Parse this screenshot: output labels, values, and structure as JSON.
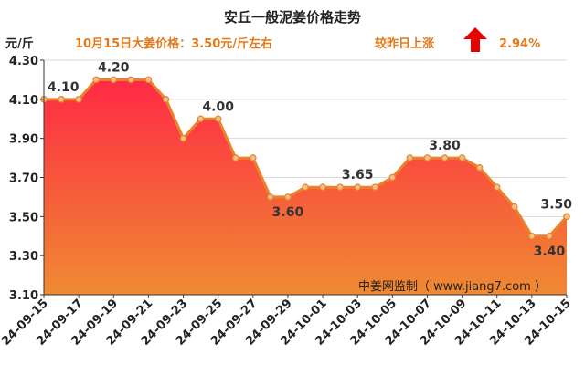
{
  "chart_data": {
    "type": "area",
    "title": "安丘一般泥姜价格走势",
    "ylabel": "元/斤",
    "xlabel": "",
    "ylim": [
      3.1,
      4.3
    ],
    "yticks": [
      "4.30",
      "4.10",
      "3.90",
      "3.70",
      "3.50",
      "3.30",
      "3.10"
    ],
    "x": [
      "24-09-15",
      "24-09-16",
      "24-09-17",
      "24-09-18",
      "24-09-19",
      "24-09-20",
      "24-09-21",
      "24-09-22",
      "24-09-23",
      "24-09-24",
      "24-09-25",
      "24-09-26",
      "24-09-27",
      "24-09-28",
      "24-09-29",
      "24-09-30",
      "24-10-01",
      "24-10-02",
      "24-10-03",
      "24-10-04",
      "24-10-05",
      "24-10-06",
      "24-10-07",
      "24-10-08",
      "24-10-09",
      "24-10-10",
      "24-10-11",
      "24-10-12",
      "24-10-13",
      "24-10-14",
      "24-10-15"
    ],
    "xtick_labels": [
      "24-09-15",
      "24-09-17",
      "24-09-19",
      "24-09-21",
      "24-09-23",
      "24-09-25",
      "24-09-27",
      "24-09-29",
      "24-10-01",
      "24-10-03",
      "24-10-05",
      "24-10-07",
      "24-10-09",
      "24-10-11",
      "24-10-13",
      "24-10-15"
    ],
    "values": [
      4.1,
      4.1,
      4.1,
      4.2,
      4.2,
      4.2,
      4.2,
      4.1,
      3.9,
      4.0,
      4.0,
      3.8,
      3.8,
      3.6,
      3.6,
      3.65,
      3.65,
      3.65,
      3.65,
      3.65,
      3.7,
      3.8,
      3.8,
      3.8,
      3.8,
      3.75,
      3.65,
      3.55,
      3.4,
      3.4,
      3.5
    ],
    "data_labels": [
      {
        "index": 0,
        "text": "4.10",
        "pos": "above"
      },
      {
        "index": 4,
        "text": "4.20",
        "pos": "above"
      },
      {
        "index": 10,
        "text": "4.00",
        "pos": "above"
      },
      {
        "index": 14,
        "text": "3.60",
        "pos": "below"
      },
      {
        "index": 18,
        "text": "3.65",
        "pos": "above"
      },
      {
        "index": 23,
        "text": "3.80",
        "pos": "above"
      },
      {
        "index": 29,
        "text": "3.40",
        "pos": "below"
      },
      {
        "index": 30,
        "text": "3.50",
        "pos": "above"
      }
    ],
    "grid": true,
    "legend": "none",
    "annotations": {
      "price_note": "10月15日大姜价格：3.50元/斤左右",
      "change_label": "较昨日上涨",
      "change_value": "2.94%",
      "watermark": "中姜网监制（ www.jiang7.com ）"
    },
    "colors": {
      "line": "#e8832a",
      "marker_fill": "#f3c08a",
      "fill_top": "#ff2a45",
      "fill_bottom": "#ef8a32",
      "arrow": "#e60000",
      "info_text": "#e07a1e"
    }
  }
}
